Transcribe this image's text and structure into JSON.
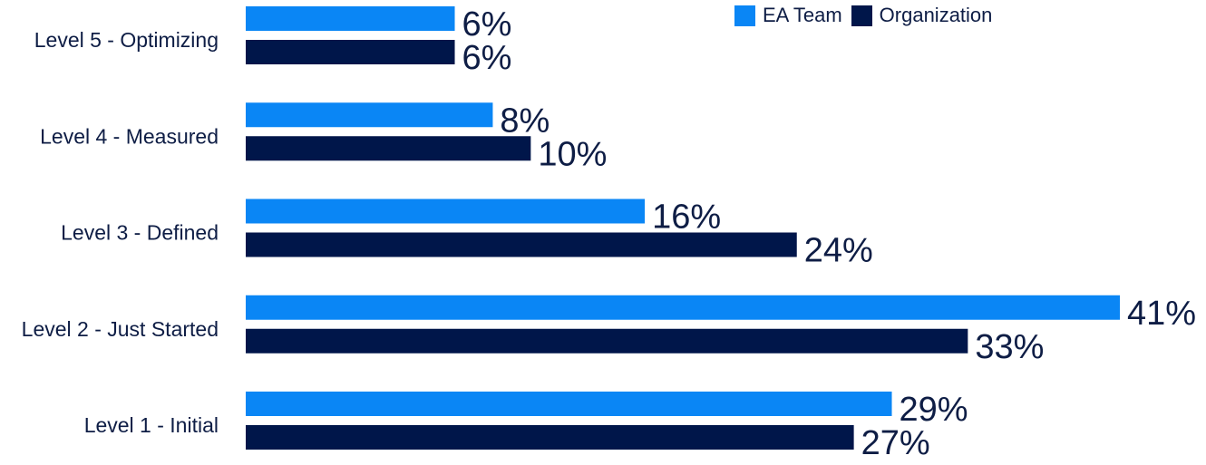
{
  "chart_data": {
    "type": "bar",
    "orientation": "horizontal",
    "title": "",
    "xlabel": "",
    "ylabel": "",
    "categories": [
      "Level 5 - Optimizing",
      "Level 4 - Measured",
      "Level 3 - Defined",
      "Level 2 - Just Started",
      "Level 1 - Initial"
    ],
    "series": [
      {
        "name": "EA Team",
        "color": "#0a86f5",
        "values": [
          6,
          8,
          16,
          41,
          29
        ],
        "labels": [
          "6%",
          "8%",
          "16%",
          "41%",
          "29%"
        ]
      },
      {
        "name": "Organization",
        "color": "#00164a",
        "values": [
          6,
          10,
          24,
          33,
          27
        ],
        "labels": [
          "6%",
          "10%",
          "24%",
          "33%",
          "27%"
        ]
      }
    ],
    "xlim": [
      -5,
      41
    ],
    "grid": false,
    "legend_position": "top-right",
    "text_color": "#0e1d45"
  }
}
